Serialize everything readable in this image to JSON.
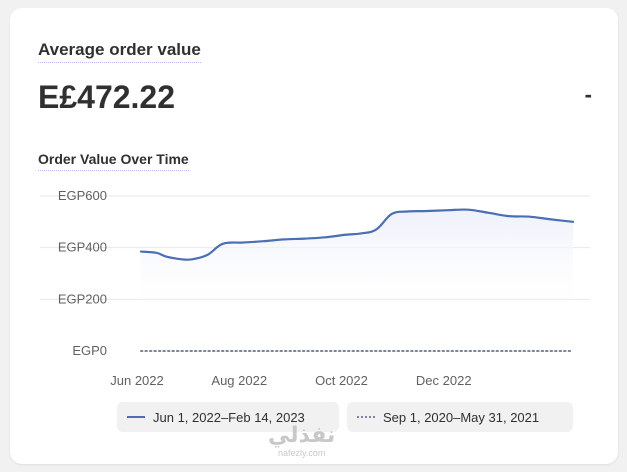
{
  "card": {
    "title": "Average order value",
    "value": "E£472.22",
    "delta": "-",
    "chart_title": "Order Value Over Time"
  },
  "chart_data": {
    "type": "line",
    "title": "Order Value Over Time",
    "y_ticks": [
      {
        "value": 600,
        "label": "EGP600"
      },
      {
        "value": 400,
        "label": "EGP400"
      },
      {
        "value": 200,
        "label": "EGP200"
      },
      {
        "value": 0,
        "label": "EGP0"
      }
    ],
    "x_ticks": [
      {
        "x": 0,
        "label": "Jun 2022"
      },
      {
        "x": 2,
        "label": "Aug 2022"
      },
      {
        "x": 4,
        "label": "Oct 2022"
      },
      {
        "x": 6,
        "label": "Dec 2022"
      }
    ],
    "xlim": [
      0,
      8.45
    ],
    "ylim": [
      0,
      600
    ],
    "grid": true,
    "legend_position": "bottom",
    "series": [
      {
        "name": "Jun 1, 2022–Feb 14, 2023",
        "style": "solid",
        "color": "#4a6fb5",
        "x": [
          0,
          0.3,
          0.5,
          0.8,
          1.0,
          1.3,
          1.6,
          2.0,
          2.4,
          2.8,
          3.2,
          3.6,
          4.0,
          4.3,
          4.6,
          4.9,
          5.2,
          5.6,
          6.0,
          6.4,
          6.8,
          7.2,
          7.6,
          8.0,
          8.45
        ],
        "values": [
          385,
          380,
          365,
          355,
          355,
          372,
          415,
          420,
          425,
          432,
          435,
          440,
          450,
          455,
          470,
          530,
          540,
          542,
          545,
          547,
          535,
          522,
          520,
          510,
          500
        ]
      },
      {
        "name": "Sep 1, 2020–May 31, 2021",
        "style": "dotted",
        "color": "#7a849a",
        "x": [
          0,
          8.45
        ],
        "values": [
          0,
          0
        ]
      }
    ]
  },
  "legend": {
    "items": [
      {
        "label": "Jun 1, 2022–Feb 14, 2023"
      },
      {
        "label": "Sep 1, 2020–May 31, 2021"
      }
    ]
  },
  "watermark": {
    "arabic": "نفذلي",
    "latin": "nafezly.com"
  },
  "colors": {
    "primary_line": "#4a6fb5",
    "comparison_line": "#7a849a",
    "title_underline": "#c9b6ff"
  }
}
